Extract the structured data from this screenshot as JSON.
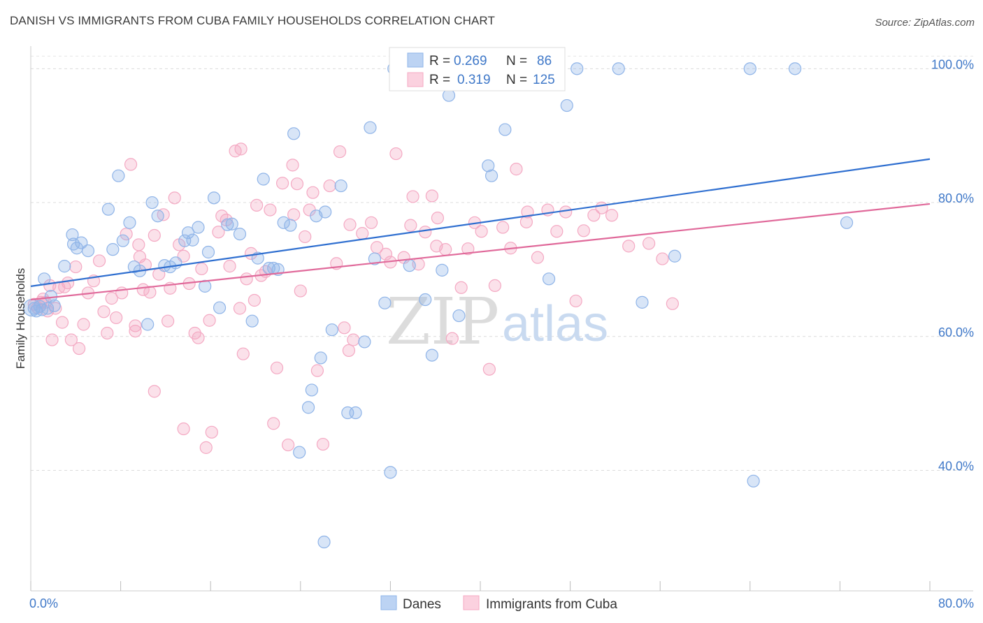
{
  "header": {
    "title": "DANISH VS IMMIGRANTS FROM CUBA FAMILY HOUSEHOLDS CORRELATION CHART",
    "source": "Source: ZipAtlas.com"
  },
  "watermark": {
    "zip": "ZIP",
    "atlas": "atlas"
  },
  "legend_box": {
    "danes": {
      "r_label": "R =",
      "r_value": "0.269",
      "n_label": "N =",
      "n_value": "86"
    },
    "cuba": {
      "r_label": "R =",
      "r_value": "0.319",
      "n_label": "N =",
      "n_value": "125"
    }
  },
  "chart_data": {
    "type": "scatter",
    "title": "DANISH VS IMMIGRANTS FROM CUBA FAMILY HOUSEHOLDS CORRELATION CHART",
    "xlabel": "",
    "ylabel": "Family Households",
    "xlim": [
      0,
      80
    ],
    "ylim": [
      22,
      104
    ],
    "x_tick_labels": [
      "0.0%",
      "80.0%"
    ],
    "y_ticks": [
      40,
      60,
      80,
      100
    ],
    "y_tick_labels": [
      "40.0%",
      "60.0%",
      "80.0%",
      "100.0%"
    ],
    "grid": true,
    "legend_position": "top-center",
    "colors": {
      "danes": "#8fb4e8",
      "danes_line": "#2f6fd0",
      "cuba": "#f4a9c3",
      "cuba_line": "#e0699a"
    },
    "series": [
      {
        "name": "Danes",
        "trend": {
          "x": [
            0,
            80
          ],
          "y": [
            67.5,
            86.5
          ]
        },
        "points": [
          [
            0.3,
            64.2
          ],
          [
            0.5,
            63.8
          ],
          [
            0.8,
            64.5
          ],
          [
            1.0,
            64.0
          ],
          [
            1.2,
            68.6
          ],
          [
            1.5,
            64.2
          ],
          [
            1.8,
            66.0
          ],
          [
            2.1,
            64.6
          ],
          [
            3.0,
            70.5
          ],
          [
            3.7,
            75.2
          ],
          [
            3.8,
            73.8
          ],
          [
            4.1,
            73.2
          ],
          [
            4.5,
            74.0
          ],
          [
            5.1,
            72.8
          ],
          [
            6.9,
            79.0
          ],
          [
            7.3,
            73.0
          ],
          [
            7.8,
            84.0
          ],
          [
            8.2,
            74.3
          ],
          [
            8.8,
            77.0
          ],
          [
            9.2,
            70.4
          ],
          [
            9.7,
            69.8
          ],
          [
            10.4,
            61.8
          ],
          [
            10.8,
            80.0
          ],
          [
            11.3,
            78.0
          ],
          [
            11.9,
            70.6
          ],
          [
            12.4,
            70.4
          ],
          [
            12.9,
            71.0
          ],
          [
            13.7,
            74.3
          ],
          [
            14.0,
            75.5
          ],
          [
            14.4,
            74.4
          ],
          [
            14.9,
            76.3
          ],
          [
            15.5,
            67.5
          ],
          [
            15.8,
            72.6
          ],
          [
            16.3,
            80.7
          ],
          [
            16.8,
            64.3
          ],
          [
            17.5,
            76.7
          ],
          [
            17.9,
            76.8
          ],
          [
            18.6,
            75.3
          ],
          [
            19.7,
            62.3
          ],
          [
            20.2,
            71.7
          ],
          [
            20.7,
            83.5
          ],
          [
            21.2,
            70.2
          ],
          [
            21.6,
            70.2
          ],
          [
            22.0,
            70.0
          ],
          [
            22.5,
            77.0
          ],
          [
            23.1,
            76.6
          ],
          [
            23.4,
            90.3
          ],
          [
            23.9,
            42.7
          ],
          [
            24.7,
            49.4
          ],
          [
            25.0,
            52.0
          ],
          [
            25.4,
            78.0
          ],
          [
            25.8,
            56.8
          ],
          [
            26.2,
            78.6
          ],
          [
            26.8,
            61.0
          ],
          [
            27.6,
            82.5
          ],
          [
            28.2,
            48.6
          ],
          [
            28.9,
            48.6
          ],
          [
            29.7,
            59.2
          ],
          [
            30.2,
            91.2
          ],
          [
            30.6,
            71.6
          ],
          [
            31.5,
            65.0
          ],
          [
            32.0,
            39.7
          ],
          [
            32.3,
            100.0
          ],
          [
            33.7,
            70.6
          ],
          [
            35.1,
            65.5
          ],
          [
            35.7,
            57.2
          ],
          [
            36.6,
            69.9
          ],
          [
            37.2,
            96.0
          ],
          [
            38.1,
            63.1
          ],
          [
            40.7,
            85.5
          ],
          [
            41.0,
            84.0
          ],
          [
            42.2,
            90.9
          ],
          [
            43.2,
            100.0
          ],
          [
            44.5,
            100.0
          ],
          [
            46.1,
            68.6
          ],
          [
            47.7,
            94.5
          ],
          [
            48.6,
            100.0
          ],
          [
            52.3,
            100.0
          ],
          [
            54.4,
            65.1
          ],
          [
            57.3,
            72.0
          ],
          [
            64.0,
            100.0
          ],
          [
            64.3,
            38.4
          ],
          [
            68.0,
            100.0
          ],
          [
            72.6,
            77.0
          ],
          [
            26.1,
            29.3
          ]
        ]
      },
      {
        "name": "Immigrants from Cuba",
        "trend": {
          "x": [
            0,
            80
          ],
          "y": [
            65.5,
            79.8
          ]
        },
        "points": [
          [
            0.3,
            64.8
          ],
          [
            0.6,
            64.3
          ],
          [
            0.9,
            65.1
          ],
          [
            1.1,
            65.6
          ],
          [
            1.3,
            65.1
          ],
          [
            1.5,
            63.8
          ],
          [
            1.7,
            67.6
          ],
          [
            1.9,
            59.5
          ],
          [
            2.2,
            64.2
          ],
          [
            2.5,
            67.3
          ],
          [
            2.8,
            62.1
          ],
          [
            3.0,
            67.4
          ],
          [
            3.3,
            68.0
          ],
          [
            3.6,
            59.5
          ],
          [
            4.0,
            70.4
          ],
          [
            4.3,
            58.2
          ],
          [
            4.7,
            61.8
          ],
          [
            5.1,
            66.5
          ],
          [
            5.6,
            68.3
          ],
          [
            6.1,
            71.3
          ],
          [
            6.5,
            63.7
          ],
          [
            6.8,
            60.5
          ],
          [
            7.2,
            65.7
          ],
          [
            7.6,
            62.8
          ],
          [
            8.1,
            66.5
          ],
          [
            8.5,
            75.3
          ],
          [
            8.9,
            85.7
          ],
          [
            9.3,
            60.8
          ],
          [
            9.7,
            71.9
          ],
          [
            9.6,
            73.7
          ],
          [
            10.0,
            67.0
          ],
          [
            10.2,
            70.7
          ],
          [
            10.6,
            66.6
          ],
          [
            11.0,
            75.1
          ],
          [
            11.4,
            69.3
          ],
          [
            11.0,
            51.8
          ],
          [
            11.8,
            78.2
          ],
          [
            12.2,
            62.3
          ],
          [
            12.4,
            67.2
          ],
          [
            12.8,
            80.7
          ],
          [
            13.2,
            73.7
          ],
          [
            13.6,
            72.0
          ],
          [
            14.1,
            67.9
          ],
          [
            14.6,
            60.5
          ],
          [
            14.9,
            59.8
          ],
          [
            15.2,
            70.1
          ],
          [
            15.6,
            43.4
          ],
          [
            15.9,
            62.4
          ],
          [
            16.1,
            45.7
          ],
          [
            16.7,
            75.6
          ],
          [
            17.0,
            78.0
          ],
          [
            17.4,
            77.4
          ],
          [
            17.7,
            70.5
          ],
          [
            18.2,
            87.7
          ],
          [
            18.6,
            64.2
          ],
          [
            18.9,
            57.4
          ],
          [
            19.2,
            68.6
          ],
          [
            19.6,
            72.4
          ],
          [
            19.9,
            65.4
          ],
          [
            20.1,
            79.6
          ],
          [
            20.5,
            69.1
          ],
          [
            20.9,
            69.7
          ],
          [
            21.3,
            78.9
          ],
          [
            21.6,
            47.0
          ],
          [
            21.9,
            55.3
          ],
          [
            22.4,
            82.9
          ],
          [
            22.9,
            43.8
          ],
          [
            23.3,
            85.6
          ],
          [
            23.7,
            82.8
          ],
          [
            24.0,
            66.8
          ],
          [
            24.4,
            74.9
          ],
          [
            24.8,
            78.9
          ],
          [
            25.1,
            81.5
          ],
          [
            25.5,
            54.9
          ],
          [
            26.0,
            43.9
          ],
          [
            26.6,
            82.5
          ],
          [
            27.2,
            70.9
          ],
          [
            27.5,
            87.6
          ],
          [
            27.9,
            61.3
          ],
          [
            28.3,
            57.9
          ],
          [
            28.7,
            59.5
          ],
          [
            29.5,
            75.4
          ],
          [
            30.3,
            77.0
          ],
          [
            30.8,
            73.3
          ],
          [
            31.6,
            72.3
          ],
          [
            32.0,
            71.1
          ],
          [
            32.5,
            87.3
          ],
          [
            33.2,
            71.8
          ],
          [
            33.8,
            76.6
          ],
          [
            34.5,
            70.8
          ],
          [
            35.1,
            75.6
          ],
          [
            35.7,
            81.0
          ],
          [
            36.2,
            77.7
          ],
          [
            36.9,
            73.0
          ],
          [
            37.5,
            59.7
          ],
          [
            38.3,
            67.3
          ],
          [
            38.9,
            73.1
          ],
          [
            39.5,
            77.0
          ],
          [
            40.1,
            75.7
          ],
          [
            40.8,
            55.1
          ],
          [
            41.3,
            67.6
          ],
          [
            42.0,
            76.3
          ],
          [
            42.7,
            73.2
          ],
          [
            43.2,
            85.0
          ],
          [
            44.2,
            78.6
          ],
          [
            45.1,
            71.8
          ],
          [
            46.0,
            78.9
          ],
          [
            46.8,
            75.7
          ],
          [
            47.6,
            78.6
          ],
          [
            48.5,
            65.3
          ],
          [
            49.2,
            75.8
          ],
          [
            50.1,
            78.1
          ],
          [
            50.8,
            79.2
          ],
          [
            51.7,
            78.1
          ],
          [
            53.2,
            73.5
          ],
          [
            55.0,
            73.9
          ],
          [
            56.2,
            71.6
          ],
          [
            57.1,
            64.9
          ],
          [
            18.7,
            88.0
          ],
          [
            13.6,
            46.2
          ],
          [
            23.4,
            78.2
          ],
          [
            34.0,
            80.9
          ],
          [
            28.4,
            76.7
          ],
          [
            9.3,
            61.6
          ],
          [
            44.1,
            77.1
          ],
          [
            36.1,
            73.5
          ]
        ]
      }
    ]
  },
  "bottom_legend": {
    "danes_label": "Danes",
    "cuba_label": "Immigrants from Cuba"
  }
}
